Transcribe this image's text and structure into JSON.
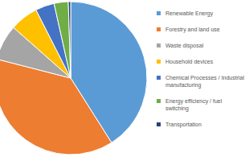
{
  "chart_data": {
    "type": "pie",
    "categories": [
      "Renewable Energy",
      "Forestry and land use",
      "Waste disposal",
      "Household devices",
      "Chemical Processes / Industrial manufacturing",
      "Energy efficiency / fuel switching",
      "Transportation"
    ],
    "values": [
      41,
      38,
      7.5,
      6,
      4,
      3,
      0.5
    ],
    "colors": [
      "#5b9bd5",
      "#ed7d31",
      "#a5a5a5",
      "#ffc000",
      "#4472c4",
      "#70ad47",
      "#264478"
    ],
    "legend": "right"
  }
}
